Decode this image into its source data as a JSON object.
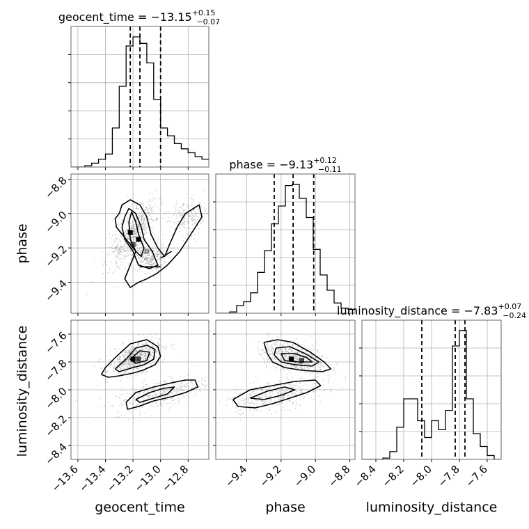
{
  "chart_data": {
    "type": "corner",
    "parameters": [
      "geocent_time",
      "phase",
      "luminosity_distance"
    ],
    "grid": true,
    "titles": [
      {
        "param": "geocent_time",
        "prefix": "geocent_time = ",
        "median": "−13.15",
        "plus": "+0.15",
        "minus": "−0.07"
      },
      {
        "param": "phase",
        "prefix": "phase = ",
        "median": "−9.13",
        "plus": "+0.12",
        "minus": "−0.11"
      },
      {
        "param": "luminosity_distance",
        "prefix": "luminosity_distance = ",
        "median": "−7.83",
        "plus": "+0.07",
        "minus": "−0.24"
      }
    ],
    "axes": {
      "geocent_time": {
        "range": [
          -13.65,
          -12.65
        ],
        "ticks": [
          -13.6,
          -13.4,
          -13.2,
          -13.0,
          -12.8
        ],
        "tick_labels": [
          "−13.6",
          "−13.4",
          "−13.2",
          "−13.0",
          "−12.8"
        ]
      },
      "phase": {
        "range": [
          -9.58,
          -8.77
        ],
        "ticks": [
          -9.4,
          -9.2,
          -9.0,
          -8.8
        ],
        "tick_labels": [
          "−9.4",
          "−9.2",
          "−9.0",
          "−8.8"
        ]
      },
      "luminosity_distance": {
        "range": [
          -8.5,
          -7.5
        ],
        "ticks": [
          -8.4,
          -8.2,
          -8.0,
          -7.8,
          -7.6
        ],
        "tick_labels": [
          "−8.4",
          "−8.2",
          "−8.0",
          "−7.8",
          "−7.6"
        ]
      }
    },
    "quantiles": {
      "geocent_time": [
        -13.22,
        -13.15,
        -13.0
      ],
      "phase": [
        -9.24,
        -9.13,
        -9.01
      ],
      "luminosity_distance": [
        -8.07,
        -7.83,
        -7.76
      ]
    },
    "histograms": {
      "geocent_time": {
        "range": [
          -13.65,
          -12.65
        ],
        "counts": [
          0,
          0,
          0.01,
          0.03,
          0.06,
          0.1,
          0.3,
          0.62,
          0.93,
          1.0,
          0.95,
          0.8,
          0.52,
          0.3,
          0.24,
          0.18,
          0.14,
          0.11,
          0.08,
          0.06
        ]
      },
      "phase": {
        "range": [
          -9.58,
          -8.77
        ],
        "counts": [
          0,
          0,
          0.01,
          0.06,
          0.09,
          0.16,
          0.32,
          0.49,
          0.7,
          0.84,
          1.0,
          1.01,
          0.9,
          0.75,
          0.5,
          0.3,
          0.18,
          0.08,
          0.04,
          0.03
        ]
      },
      "luminosity_distance": {
        "range": [
          -8.5,
          -7.5
        ],
        "counts": [
          0,
          0,
          0,
          0.01,
          0.06,
          0.25,
          0.47,
          0.47,
          0.3,
          0.17,
          0.3,
          0.23,
          0.38,
          0.88,
          1.0,
          0.47,
          0.2,
          0.1,
          0.03,
          0
        ]
      }
    },
    "contours": {
      "phase|geocent_time": [
        [
          [
            -13.3,
            -9.0
          ],
          [
            -13.28,
            -8.95
          ],
          [
            -13.22,
            -8.92
          ],
          [
            -13.15,
            -8.95
          ],
          [
            -13.1,
            -9.02
          ],
          [
            -13.07,
            -9.12
          ],
          [
            -13.02,
            -9.2
          ],
          [
            -12.97,
            -9.25
          ],
          [
            -12.93,
            -9.17
          ],
          [
            -12.88,
            -9.08
          ],
          [
            -12.82,
            -9.0
          ],
          [
            -12.72,
            -8.95
          ],
          [
            -12.7,
            -9.02
          ],
          [
            -12.78,
            -9.12
          ],
          [
            -12.86,
            -9.22
          ],
          [
            -12.95,
            -9.3
          ],
          [
            -13.03,
            -9.35
          ],
          [
            -13.1,
            -9.38
          ],
          [
            -13.16,
            -9.4
          ],
          [
            -13.22,
            -9.43
          ],
          [
            -13.26,
            -9.38
          ],
          [
            -13.22,
            -9.3
          ],
          [
            -13.18,
            -9.22
          ],
          [
            -13.25,
            -9.15
          ],
          [
            -13.32,
            -9.08
          ],
          [
            -13.33,
            -9.03
          ],
          [
            -13.3,
            -9.0
          ]
        ],
        [
          [
            -13.23,
            -8.97
          ],
          [
            -13.18,
            -9.0
          ],
          [
            -13.14,
            -9.08
          ],
          [
            -13.12,
            -9.15
          ],
          [
            -13.06,
            -9.22
          ],
          [
            -13.02,
            -9.3
          ],
          [
            -13.08,
            -9.32
          ],
          [
            -13.16,
            -9.3
          ],
          [
            -13.2,
            -9.22
          ],
          [
            -13.26,
            -9.15
          ],
          [
            -13.28,
            -9.08
          ],
          [
            -13.26,
            -9.02
          ],
          [
            -13.23,
            -8.97
          ]
        ],
        [
          [
            -13.21,
            -8.99
          ],
          [
            -13.18,
            -9.05
          ],
          [
            -13.16,
            -9.12
          ],
          [
            -13.12,
            -9.2
          ],
          [
            -13.14,
            -9.25
          ],
          [
            -13.18,
            -9.22
          ],
          [
            -13.22,
            -9.15
          ],
          [
            -13.23,
            -9.05
          ],
          [
            -13.21,
            -8.99
          ]
        ],
        [
          [
            -13.15,
            -9.31
          ],
          [
            -13.0,
            -9.31
          ]
        ],
        [
          [
            -13.0,
            -9.26
          ],
          [
            -12.92,
            -9.22
          ]
        ]
      ],
      "luminosity_distance|geocent_time": [
        [
          [
            -13.43,
            -7.89
          ],
          [
            -13.4,
            -7.84
          ],
          [
            -13.32,
            -7.76
          ],
          [
            -13.22,
            -7.67
          ],
          [
            -13.1,
            -7.64
          ],
          [
            -13.02,
            -7.69
          ],
          [
            -13.0,
            -7.76
          ],
          [
            -13.04,
            -7.82
          ],
          [
            -13.13,
            -7.86
          ],
          [
            -13.2,
            -7.88
          ],
          [
            -13.3,
            -7.9
          ],
          [
            -13.38,
            -7.91
          ],
          [
            -13.43,
            -7.89
          ]
        ],
        [
          [
            -13.33,
            -7.85
          ],
          [
            -13.25,
            -7.78
          ],
          [
            -13.18,
            -7.7
          ],
          [
            -13.1,
            -7.68
          ],
          [
            -13.04,
            -7.71
          ],
          [
            -13.05,
            -7.78
          ],
          [
            -13.12,
            -7.82
          ],
          [
            -13.2,
            -7.84
          ],
          [
            -13.3,
            -7.87
          ],
          [
            -13.33,
            -7.85
          ]
        ],
        [
          [
            -13.22,
            -7.78
          ],
          [
            -13.15,
            -7.72
          ],
          [
            -13.08,
            -7.73
          ],
          [
            -13.1,
            -7.79
          ],
          [
            -13.18,
            -7.81
          ],
          [
            -13.22,
            -7.78
          ]
        ],
        [
          [
            -13.25,
            -8.09
          ],
          [
            -13.18,
            -8.02
          ],
          [
            -13.05,
            -7.98
          ],
          [
            -12.92,
            -7.95
          ],
          [
            -12.82,
            -7.93
          ],
          [
            -12.75,
            -7.93
          ],
          [
            -12.73,
            -7.98
          ],
          [
            -12.82,
            -8.02
          ],
          [
            -12.92,
            -8.05
          ],
          [
            -13.05,
            -8.08
          ],
          [
            -13.16,
            -8.12
          ],
          [
            -13.24,
            -8.14
          ],
          [
            -13.25,
            -8.09
          ]
        ],
        [
          [
            -13.18,
            -8.07
          ],
          [
            -13.08,
            -8.02
          ],
          [
            -12.98,
            -7.99
          ],
          [
            -12.9,
            -7.98
          ],
          [
            -12.95,
            -8.03
          ],
          [
            -13.05,
            -8.06
          ],
          [
            -13.15,
            -8.09
          ],
          [
            -13.18,
            -8.07
          ]
        ]
      ],
      "luminosity_distance|phase": [
        [
          [
            -9.3,
            -7.66
          ],
          [
            -9.22,
            -7.64
          ],
          [
            -9.13,
            -7.66
          ],
          [
            -9.03,
            -7.73
          ],
          [
            -8.95,
            -7.8
          ],
          [
            -8.91,
            -7.85
          ],
          [
            -8.96,
            -7.87
          ],
          [
            -9.08,
            -7.86
          ],
          [
            -9.18,
            -7.84
          ],
          [
            -9.25,
            -7.8
          ],
          [
            -9.28,
            -7.74
          ],
          [
            -9.3,
            -7.66
          ]
        ],
        [
          [
            -9.23,
            -7.7
          ],
          [
            -9.15,
            -7.69
          ],
          [
            -9.06,
            -7.74
          ],
          [
            -8.98,
            -7.8
          ],
          [
            -9.02,
            -7.83
          ],
          [
            -9.12,
            -7.82
          ],
          [
            -9.2,
            -7.8
          ],
          [
            -9.24,
            -7.75
          ],
          [
            -9.23,
            -7.7
          ]
        ],
        [
          [
            -9.2,
            -7.74
          ],
          [
            -9.12,
            -7.74
          ],
          [
            -9.05,
            -7.77
          ],
          [
            -9.02,
            -7.8
          ],
          [
            -9.1,
            -7.8
          ],
          [
            -9.18,
            -7.79
          ],
          [
            -9.2,
            -7.74
          ]
        ],
        [
          [
            -9.48,
            -8.07
          ],
          [
            -9.38,
            -8.0
          ],
          [
            -9.25,
            -7.97
          ],
          [
            -9.12,
            -7.94
          ],
          [
            -9.0,
            -7.93
          ],
          [
            -8.97,
            -7.97
          ],
          [
            -9.05,
            -8.02
          ],
          [
            -9.15,
            -8.06
          ],
          [
            -9.25,
            -8.1
          ],
          [
            -9.35,
            -8.13
          ],
          [
            -9.45,
            -8.12
          ],
          [
            -9.48,
            -8.07
          ]
        ],
        [
          [
            -9.38,
            -8.06
          ],
          [
            -9.28,
            -8.01
          ],
          [
            -9.18,
            -7.98
          ],
          [
            -9.12,
            -8.0
          ],
          [
            -9.2,
            -8.04
          ],
          [
            -9.3,
            -8.07
          ],
          [
            -9.38,
            -8.06
          ]
        ]
      ]
    },
    "density": {
      "phase|geocent_time": [
        {
          "center": [
            -13.2,
            -9.12
          ],
          "spread": [
            0.05,
            0.12
          ],
          "rot": -0.7,
          "w": 1.0
        },
        {
          "center": [
            -13.08,
            -9.26
          ],
          "spread": [
            0.06,
            0.04
          ],
          "rot": 0,
          "w": 0.45
        },
        {
          "center": [
            -12.8,
            -9.02
          ],
          "spread": [
            0.07,
            0.05
          ],
          "rot": 0.6,
          "w": 0.3
        }
      ],
      "luminosity_distance|geocent_time": [
        {
          "center": [
            -13.18,
            -7.77
          ],
          "spread": [
            0.1,
            0.05
          ],
          "rot": 0.4,
          "w": 1.0
        },
        {
          "center": [
            -13.0,
            -8.03
          ],
          "spread": [
            0.18,
            0.05
          ],
          "rot": 0.25,
          "w": 0.6
        }
      ],
      "luminosity_distance|phase": [
        {
          "center": [
            -9.12,
            -7.77
          ],
          "spread": [
            0.1,
            0.05
          ],
          "rot": -0.35,
          "w": 1.0
        },
        {
          "center": [
            -9.25,
            -8.05
          ],
          "spread": [
            0.15,
            0.05
          ],
          "rot": 0.25,
          "w": 0.6
        }
      ]
    },
    "highlight_bins": {
      "phase|geocent_time": [
        [
          -13.22,
          -9.11,
          1.0
        ],
        [
          -13.16,
          -9.15,
          1.0
        ],
        [
          -13.2,
          -9.18,
          0.55
        ],
        [
          -13.1,
          -9.22,
          0.35
        ]
      ],
      "luminosity_distance|geocent_time": [
        [
          -13.2,
          -7.78,
          1.0
        ],
        [
          -13.16,
          -7.78,
          0.7
        ]
      ],
      "luminosity_distance|phase": [
        [
          -9.14,
          -7.78,
          1.0
        ],
        [
          -9.08,
          -7.79,
          0.7
        ]
      ]
    }
  }
}
